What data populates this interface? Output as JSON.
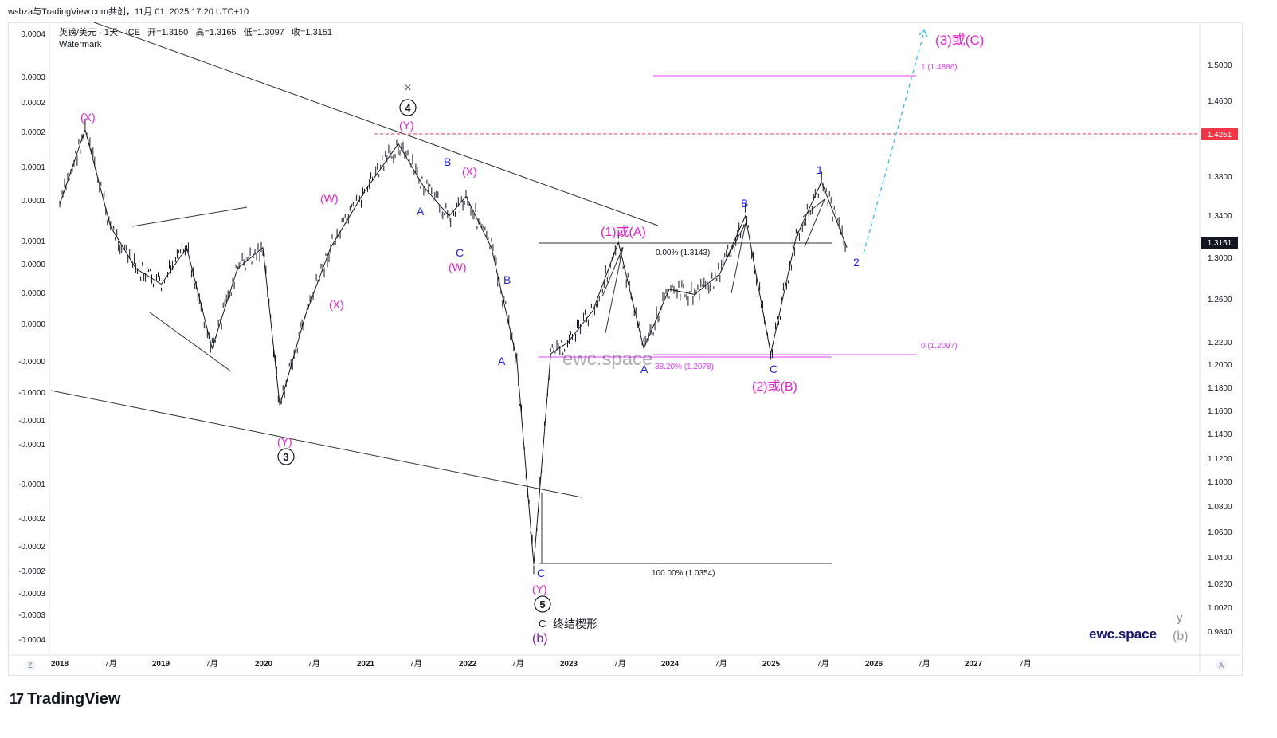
{
  "header": {
    "share_line": "wsbza与TradingView.com共创，11月 01, 2025 17:20 UTC+10"
  },
  "legend": {
    "symbol": "英镑/美元 · 1天 · ICE",
    "open_label": "开",
    "open": "=1.3150",
    "high_label": "高",
    "high": "=1.3165",
    "low_label": "低",
    "low": "=1.3097",
    "close_label": "收",
    "close": "=1.3151",
    "watermark": "Watermark"
  },
  "footer": {
    "brand": "TradingView",
    "zoom_left": "Z",
    "zoom_right": "A"
  },
  "watermarks": {
    "center": "ewc.space",
    "corner": "ewc.space",
    "corner_y": "y",
    "corner_b": "(b)"
  },
  "chart_data": {
    "type": "line",
    "title": "英镑/美元 · 1天 · ICE",
    "right_axis_ticks": [
      "1.5000",
      "1.4600",
      "1.3800",
      "1.3400",
      "1.3000",
      "1.2600",
      "1.2200",
      "1.2000",
      "1.1800",
      "1.1600",
      "1.1400",
      "1.1200",
      "1.1000",
      "1.0800",
      "1.0600",
      "1.0400",
      "1.0200",
      "1.0020",
      "0.9840"
    ],
    "left_axis_ticks": [
      "0.0004",
      "0.0003",
      "0.0002",
      "0.0002",
      "0.0001",
      "0.0001",
      "0.0001",
      "0.0000",
      "0.0000",
      "0.0000",
      "-0.0000",
      "-0.0000",
      "-0.0001",
      "-0.0001",
      "-0.0001",
      "-0.0002",
      "-0.0002",
      "-0.0002",
      "-0.0003",
      "-0.0003",
      "-0.0004"
    ],
    "x_ticks": [
      "2018",
      "7月",
      "2019",
      "7月",
      "2020",
      "7月",
      "2021",
      "7月",
      "2022",
      "7月",
      "2023",
      "7月",
      "2024",
      "7月",
      "2025",
      "7月",
      "2026",
      "7月",
      "2027",
      "7月"
    ],
    "price_badges": {
      "red_level": "1.4251",
      "last_price": "1.3151"
    },
    "fib_labels": {
      "fib_1": "1 (1.4886)",
      "fib_0": "0 (1.2097)",
      "ret_0": "0.00% (1.3143)",
      "ret_382": "38.20% (1.2078)",
      "ret_100": "100.00% (1.0354)"
    },
    "wave_labels": {
      "x1": "(X)",
      "w1": "(W)",
      "x2": "(X)",
      "y1": "(Y)",
      "y2": "(Y)",
      "x3": "(X)",
      "w2": "(W)",
      "b_blue1": "B",
      "a_blue1": "A",
      "c_blue1": "C",
      "b_blue2": "B",
      "a_blue2": "A",
      "circle3": "3",
      "circle4": "4",
      "circle5": "5",
      "cross": "×",
      "c_blue_low": "C",
      "y_low": "(Y)",
      "c_black": "C",
      "terminal": "终结楔形",
      "b_paren": "(b)",
      "one_or_a": "(1)或(A)",
      "a_blue3": "A",
      "b_blue3": "B",
      "c_blue3": "C",
      "two_or_b": "(2)或(B)",
      "one_blue": "1",
      "two_blue": "2",
      "three_or_c": "(3)或(C)"
    },
    "series": [
      {
        "name": "GBPUSD",
        "x": [
          "2018-01",
          "2018-04",
          "2018-07",
          "2018-10",
          "2019-01",
          "2019-04",
          "2019-07",
          "2019-10",
          "2020-01",
          "2020-03",
          "2020-06",
          "2020-09",
          "2021-01",
          "2021-05",
          "2021-08",
          "2021-11",
          "2022-01",
          "2022-04",
          "2022-07",
          "2022-09",
          "2022-11",
          "2023-01",
          "2023-04",
          "2023-07",
          "2023-10",
          "2024-01",
          "2024-04",
          "2024-07",
          "2024-10",
          "2025-01",
          "2025-04",
          "2025-07",
          "2025-10"
        ],
        "values": [
          1.352,
          1.43,
          1.33,
          1.29,
          1.275,
          1.31,
          1.215,
          1.29,
          1.31,
          1.165,
          1.245,
          1.31,
          1.365,
          1.415,
          1.37,
          1.34,
          1.36,
          1.31,
          1.205,
          1.035,
          1.21,
          1.22,
          1.25,
          1.315,
          1.215,
          1.27,
          1.265,
          1.285,
          1.34,
          1.21,
          1.32,
          1.375,
          1.31
        ]
      }
    ]
  }
}
